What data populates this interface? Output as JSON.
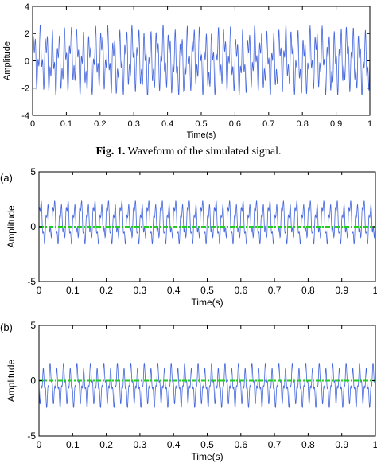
{
  "caption": {
    "label": "Fig. 1.",
    "text": " Waveform of the simulated signal."
  },
  "chart_data": [
    {
      "type": "line",
      "panel_label": "",
      "xlabel": "Time(s)",
      "ylabel": "Amplitude",
      "xlim": [
        0,
        1
      ],
      "ylim": [
        -4,
        4
      ],
      "xticks": [
        "0",
        "0.1",
        "0.2",
        "0.3",
        "0.4",
        "0.5",
        "0.6",
        "0.7",
        "0.8",
        "0.9",
        "1"
      ],
      "yticks": [
        "-4",
        "-2",
        "0",
        "2",
        "4"
      ],
      "grid": false,
      "series": [
        {
          "color": "#4466dd",
          "style": "solid",
          "x_start": 0,
          "x_end": 1,
          "approx_peak": 2.6,
          "approx_trough": -2.5
        }
      ]
    },
    {
      "type": "line",
      "panel_label": "(a)",
      "xlabel": "Time(s)",
      "ylabel": "Amplitude",
      "xlim": [
        0,
        1
      ],
      "ylim": [
        -5,
        5
      ],
      "xticks": [
        "0",
        "0.1",
        "0.2",
        "0.3",
        "0.4",
        "0.5",
        "0.6",
        "0.7",
        "0.8",
        "0.9",
        "1"
      ],
      "yticks": [
        "-5",
        "0",
        "5"
      ],
      "grid": false,
      "series": [
        {
          "color": "#4466dd",
          "style": "solid",
          "x_start": 0,
          "x_end": 1,
          "approx_peak": 2.5,
          "approx_trough": -1.6
        },
        {
          "color": "#22cc22",
          "style": "dash-dot",
          "x_start": 0,
          "x_end": 1,
          "approx_peak": 0,
          "approx_trough": 0
        }
      ]
    },
    {
      "type": "line",
      "panel_label": "(b)",
      "xlabel": "Time(s)",
      "ylabel": "Amplitude",
      "xlim": [
        0,
        1
      ],
      "ylim": [
        -5,
        5
      ],
      "xticks": [
        "0",
        "0.1",
        "0.2",
        "0.3",
        "0.4",
        "0.5",
        "0.6",
        "0.7",
        "0.8",
        "0.9",
        "1"
      ],
      "yticks": [
        "-5",
        "0",
        "5"
      ],
      "grid": false,
      "series": [
        {
          "color": "#4466dd",
          "style": "solid",
          "x_start": 0,
          "x_end": 1,
          "approx_peak": 1.6,
          "approx_trough": -2.4
        },
        {
          "color": "#22cc22",
          "style": "dash-dot",
          "x_start": 0,
          "x_end": 1,
          "approx_peak": 0,
          "approx_trough": 0
        }
      ]
    }
  ]
}
